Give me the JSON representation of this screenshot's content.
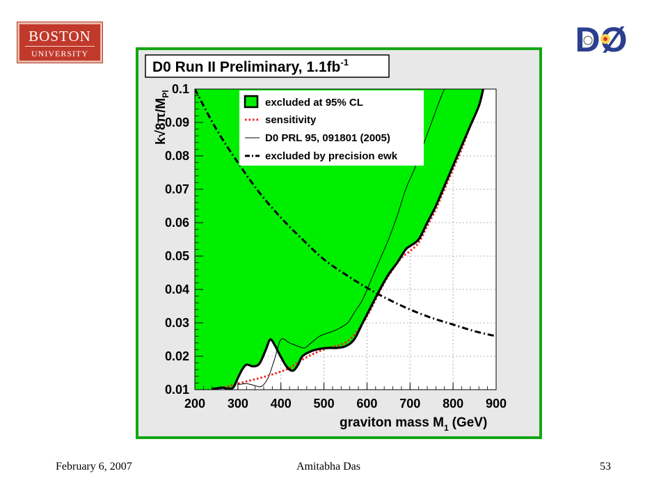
{
  "logos": {
    "university": {
      "line1": "BOSTON",
      "line2": "UNIVERSITY"
    },
    "experiment": {
      "text": "DØ"
    }
  },
  "footer": {
    "date": "February 6, 2007",
    "author": "Amitabha Das",
    "page": "53"
  },
  "colors": {
    "excluded_fill": "#00ee00",
    "sensitivity_line": "#ee2222",
    "frame_green": "#13a713",
    "panel_bg": "#e8e8e8"
  },
  "chart_data": {
    "type": "line",
    "title": "D0 Run II Preliminary, 1.1fb",
    "title_superscript": "-1",
    "xlabel": "graviton mass M",
    "xlabel_subscript": "1",
    "xlabel_unit": "(GeV)",
    "ylabel": "k√8π/M",
    "ylabel_subscript": "Pl",
    "xlim": [
      200,
      900
    ],
    "ylim": [
      0.01,
      0.1
    ],
    "x_ticks": [
      "200",
      "300",
      "400",
      "500",
      "600",
      "700",
      "800",
      "900"
    ],
    "y_ticks": [
      "0.01",
      "0.02",
      "0.03",
      "0.04",
      "0.05",
      "0.06",
      "0.07",
      "0.08",
      "0.09",
      "0.1"
    ],
    "grid": true,
    "legend_position": "top",
    "legend": [
      {
        "label": "excluded at 95% CL",
        "style": "filled-box"
      },
      {
        "label": "sensitivity",
        "style": "red-dotted"
      },
      {
        "label": "D0 PRL 95, 091801 (2005)",
        "style": "thin-solid"
      },
      {
        "label": "excluded by precision ewk",
        "style": "dash-dot"
      }
    ],
    "series": [
      {
        "name": "excluded at 95% CL",
        "x": [
          240,
          250,
          265,
          280,
          290,
          300,
          310,
          320,
          335,
          350,
          365,
          375,
          385,
          395,
          410,
          420,
          430,
          440,
          450,
          470,
          490,
          510,
          530,
          550,
          570,
          590,
          610,
          630,
          650,
          670,
          690,
          700,
          720,
          740,
          760,
          780,
          800,
          820,
          840,
          860,
          870
        ],
        "y": [
          0.0102,
          0.0104,
          0.0106,
          0.0102,
          0.0108,
          0.0135,
          0.016,
          0.0175,
          0.017,
          0.0178,
          0.022,
          0.025,
          0.0235,
          0.021,
          0.0175,
          0.016,
          0.0158,
          0.0175,
          0.02,
          0.0215,
          0.0222,
          0.0225,
          0.0225,
          0.023,
          0.025,
          0.03,
          0.035,
          0.04,
          0.0445,
          0.048,
          0.052,
          0.053,
          0.055,
          0.06,
          0.065,
          0.071,
          0.077,
          0.083,
          0.089,
          0.095,
          0.1
        ]
      },
      {
        "name": "sensitivity",
        "x": [
          240,
          270,
          300,
          330,
          360,
          390,
          420,
          450,
          480,
          510,
          540,
          560,
          580,
          600,
          620,
          640,
          660,
          680,
          700,
          720,
          740,
          760,
          780,
          800,
          820,
          840,
          860,
          870
        ],
        "y": [
          0.0102,
          0.0108,
          0.0118,
          0.0128,
          0.0138,
          0.015,
          0.0165,
          0.019,
          0.021,
          0.0225,
          0.0235,
          0.025,
          0.028,
          0.032,
          0.037,
          0.042,
          0.046,
          0.0495,
          0.0515,
          0.054,
          0.059,
          0.064,
          0.07,
          0.076,
          0.082,
          0.089,
          0.095,
          0.1
        ]
      },
      {
        "name": "D0 PRL 95, 091801 (2005)",
        "x": [
          300,
          320,
          340,
          355,
          370,
          385,
          400,
          420,
          440,
          455,
          470,
          490,
          510,
          530,
          555,
          570,
          590,
          610,
          630,
          650,
          670,
          690,
          710,
          730,
          750,
          770,
          780
        ],
        "y": [
          0.0115,
          0.0118,
          0.0112,
          0.011,
          0.0135,
          0.019,
          0.025,
          0.024,
          0.023,
          0.0225,
          0.024,
          0.026,
          0.027,
          0.028,
          0.03,
          0.033,
          0.037,
          0.043,
          0.049,
          0.055,
          0.062,
          0.07,
          0.076,
          0.083,
          0.09,
          0.097,
          0.1
        ]
      },
      {
        "name": "excluded by precision ewk",
        "x": [
          200,
          250,
          300,
          350,
          400,
          450,
          500,
          550,
          600,
          650,
          700,
          750,
          800,
          850,
          900
        ],
        "y": [
          0.1,
          0.088,
          0.078,
          0.069,
          0.0615,
          0.055,
          0.049,
          0.0445,
          0.0405,
          0.037,
          0.034,
          0.0315,
          0.0295,
          0.0275,
          0.026
        ]
      }
    ]
  }
}
